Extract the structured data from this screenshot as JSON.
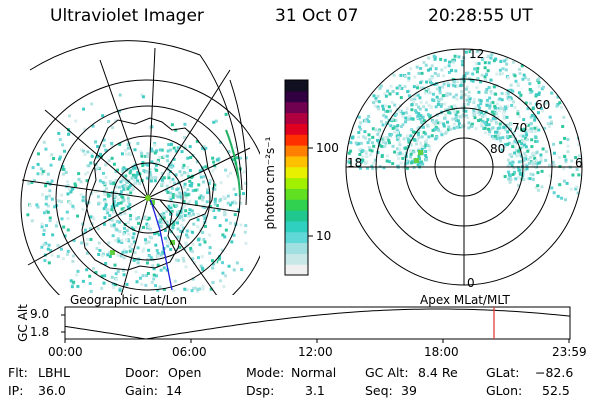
{
  "header": {
    "title": "Ultraviolet Imager",
    "date": "31 Oct 07",
    "time": "20:28:55 UT"
  },
  "colorbar": {
    "unit_label": "photon cm⁻²s⁻¹",
    "ticks": [
      "100",
      "10"
    ],
    "colors": [
      "#f0f0f0",
      "#c8e8e8",
      "#a0e0e0",
      "#60d8d8",
      "#30d0c0",
      "#20c890",
      "#30d050",
      "#60e020",
      "#a0f000",
      "#e8f000",
      "#ffc000",
      "#ff8000",
      "#ff3000",
      "#e00020",
      "#b00040",
      "#700050",
      "#300040",
      "#101020"
    ]
  },
  "left_map": {
    "caption": "Geographic Lat/Lon"
  },
  "right_map": {
    "caption": "Apex MLat/MLT",
    "mlt_labels": {
      "top": "12",
      "left": "18",
      "right": "6",
      "bottom": "0"
    },
    "lat_labels": [
      "60",
      "70",
      "80"
    ]
  },
  "altitude_plot": {
    "ylabel": "GC Alt",
    "yticks": [
      "9.0",
      "1.8"
    ],
    "xticks": [
      "00:00",
      "06:00",
      "12:00",
      "18:00",
      "23:59"
    ],
    "marker_color": "#e03030"
  },
  "status": {
    "flt_label": "Flt:",
    "flt_value": "LBHL",
    "ip_label": "IP:",
    "ip_value": "36.0",
    "door_label": "Door:",
    "door_value": "Open",
    "gain_label": "Gain:",
    "gain_value": "14",
    "mode_label": "Mode:",
    "mode_value": "Normal",
    "dsp_label": "Dsp:",
    "dsp_value": "3.1",
    "gcalt_label": "GC Alt:",
    "gcalt_value": "8.4 Re",
    "seq_label": "Seq:",
    "seq_value": "39",
    "glat_label": "GLat:",
    "glat_value": "−82.6",
    "glon_label": "GLon:",
    "glon_value": "52.5"
  }
}
